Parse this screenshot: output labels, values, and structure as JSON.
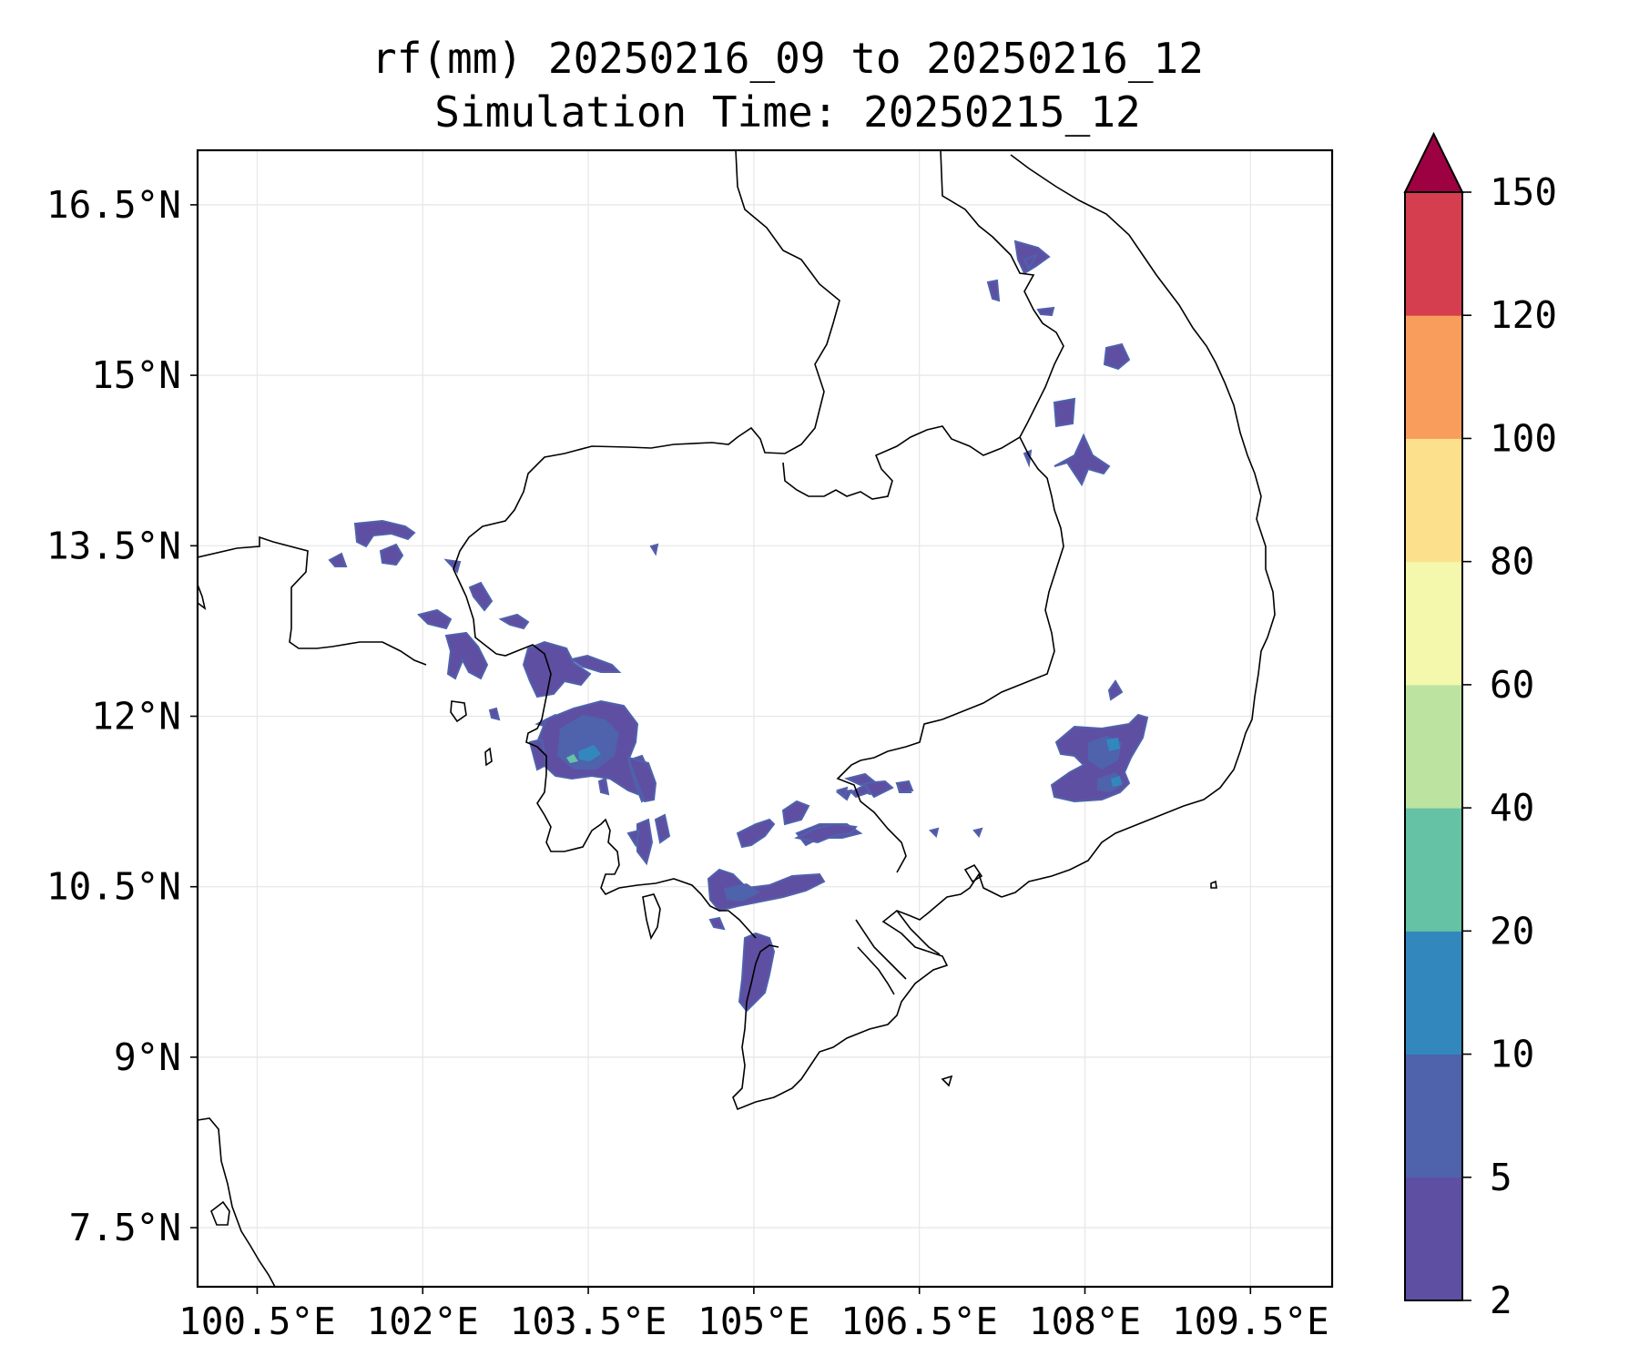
{
  "title": {
    "line1": "rf(mm) 20250216_09 to 20250216_12",
    "line2": "Simulation Time: 20250215_12"
  },
  "map": {
    "lon_range": [
      99.96,
      110.24
    ],
    "lat_range": [
      6.98,
      16.98
    ],
    "lon_ticks": [
      {
        "value": 100.5,
        "label": "100.5°E"
      },
      {
        "value": 102.0,
        "label": "102°E"
      },
      {
        "value": 103.5,
        "label": "103.5°E"
      },
      {
        "value": 105.0,
        "label": "105°E"
      },
      {
        "value": 106.5,
        "label": "106.5°E"
      },
      {
        "value": 108.0,
        "label": "108°E"
      },
      {
        "value": 109.5,
        "label": "109.5°E"
      }
    ],
    "lat_ticks": [
      {
        "value": 16.5,
        "label": "16.5°N"
      },
      {
        "value": 15.0,
        "label": "15°N"
      },
      {
        "value": 13.5,
        "label": "13.5°N"
      },
      {
        "value": 12.0,
        "label": "12°N"
      },
      {
        "value": 10.5,
        "label": "10.5°N"
      },
      {
        "value": 9.0,
        "label": "9°N"
      },
      {
        "value": 7.5,
        "label": "7.5°N"
      }
    ],
    "gridlines": true,
    "coastline_color": "#000000",
    "rain_cells": [
      {
        "name": "western-cambodia-main",
        "level": "5-10",
        "center": [
          103.5,
          11.75
        ],
        "size": [
          0.9,
          0.5
        ]
      },
      {
        "name": "central-highlands-east",
        "level": "5-10",
        "center": [
          107.9,
          11.45
        ],
        "size": [
          0.8,
          0.5
        ]
      },
      {
        "name": "gulf-coast",
        "level": "2-5",
        "center": [
          105.1,
          10.45
        ],
        "size": [
          0.9,
          0.12
        ]
      },
      {
        "name": "phu-quoc-south",
        "level": "2-5",
        "center": [
          105.05,
          9.6
        ],
        "size": [
          0.2,
          0.5
        ]
      }
    ]
  },
  "colorbar": {
    "levels": [
      2,
      5,
      10,
      20,
      40,
      60,
      80,
      100,
      120,
      150
    ],
    "labels": [
      "2",
      "5",
      "10",
      "20",
      "40",
      "60",
      "80",
      "100",
      "120",
      "150"
    ],
    "colors": [
      "#5e4fa2",
      "#4f62ac",
      "#3288bd",
      "#66c2a5",
      "#bde3a0",
      "#f3f8ad",
      "#fde08b",
      "#f99d5d",
      "#d53e4f"
    ],
    "extend_color": "#9e0142",
    "extend": "max"
  }
}
